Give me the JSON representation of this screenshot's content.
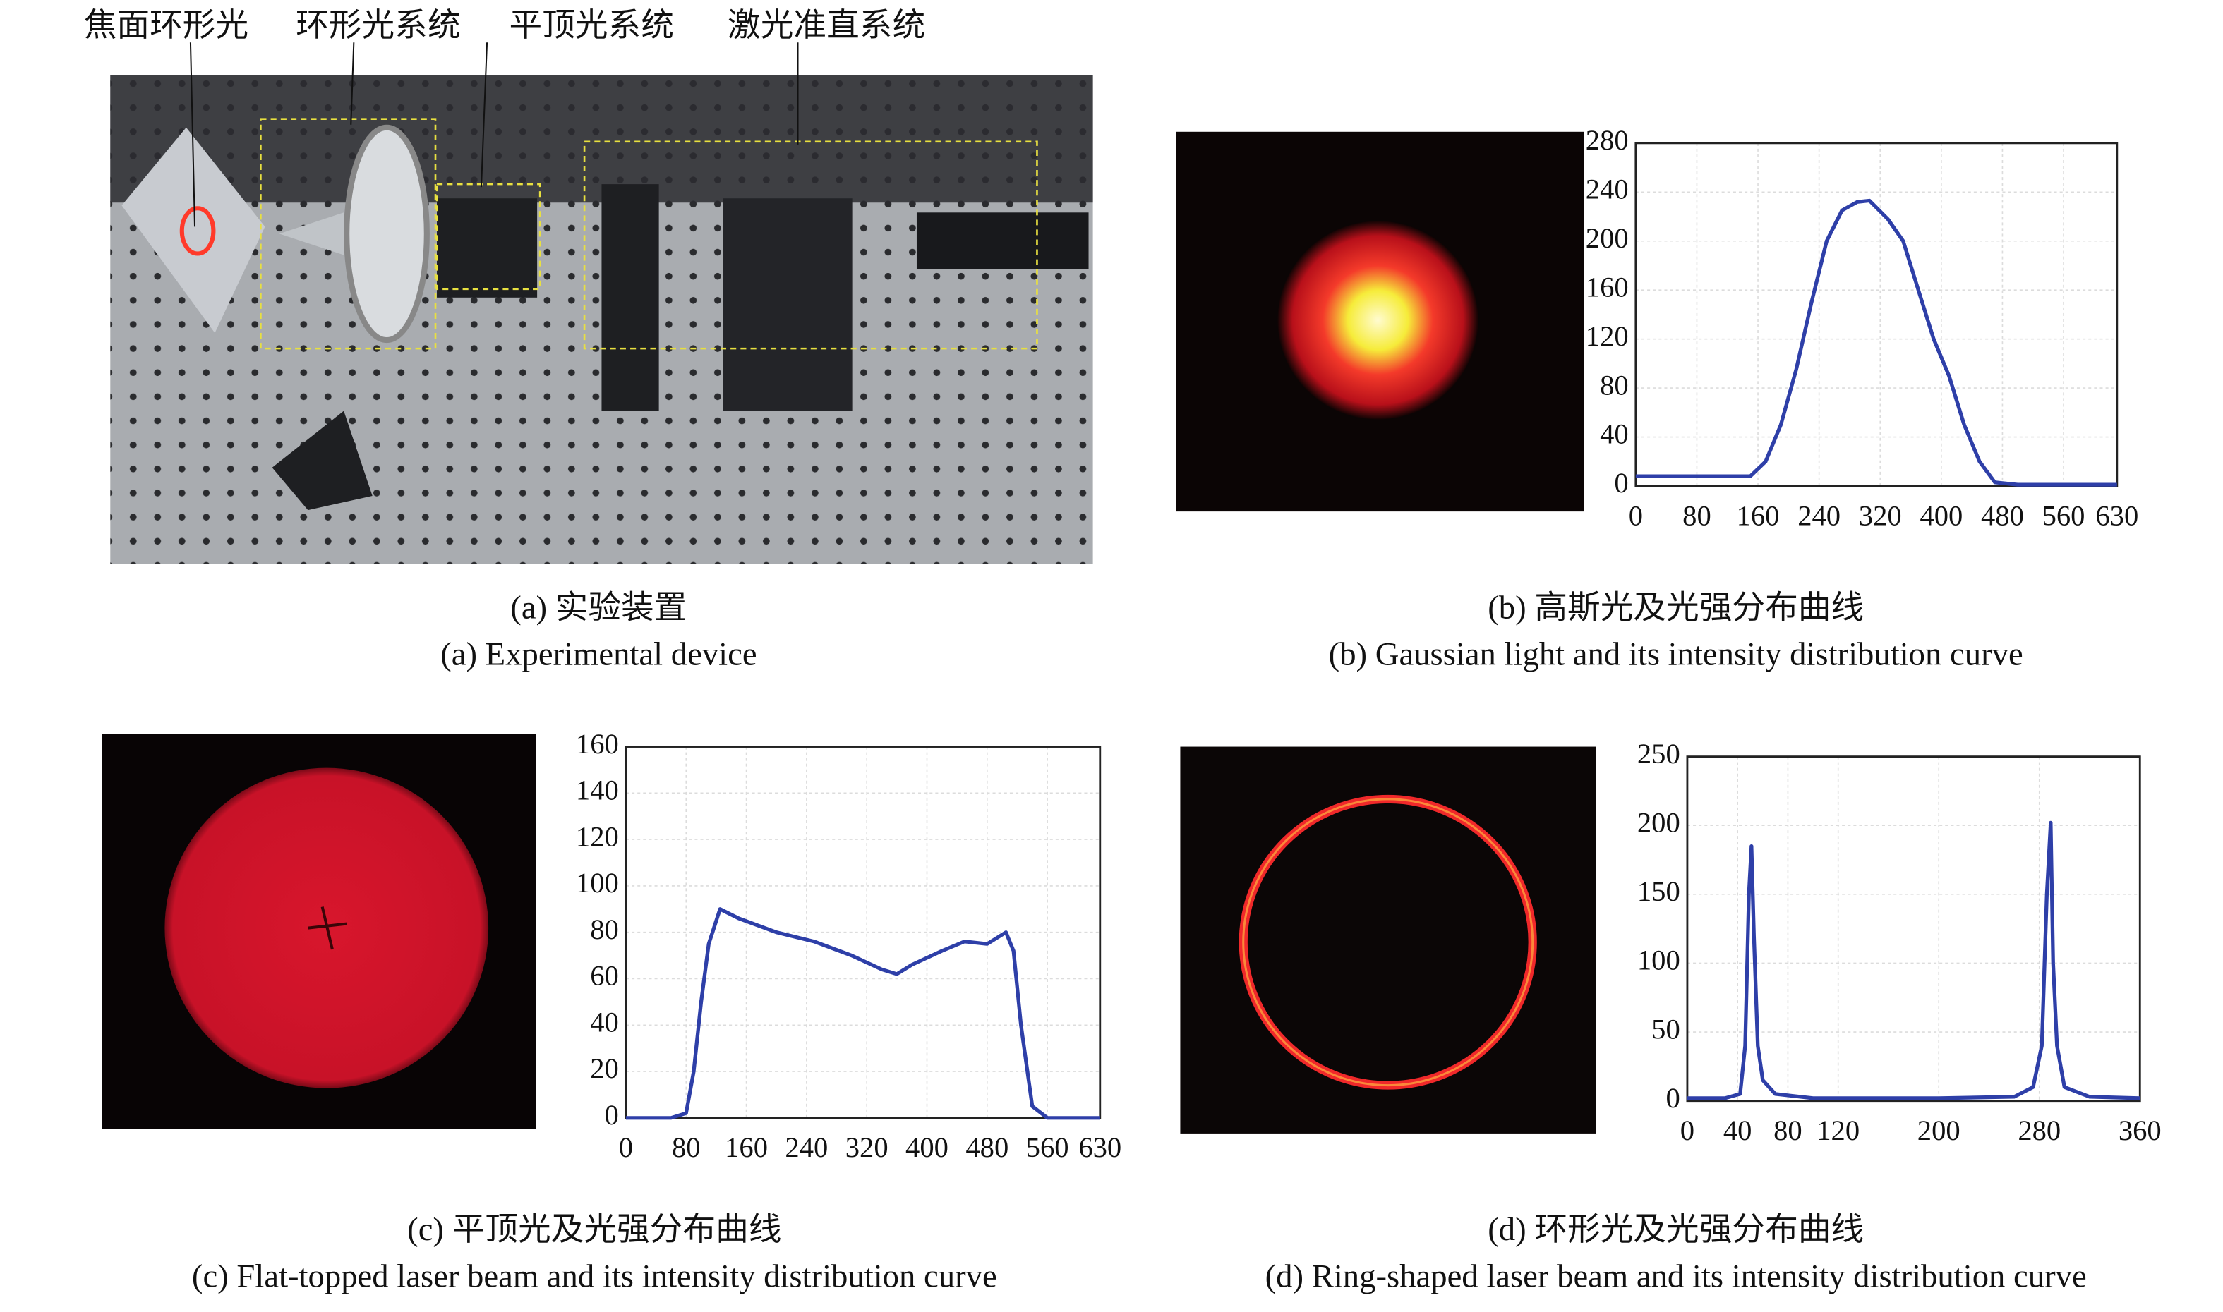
{
  "photo": {
    "labels": [
      "焦面环形光",
      "环形光系统",
      "平顶光系统",
      "激光准直系统"
    ],
    "caption": "(a) 实验装置",
    "caption_en": "(a) Experimental device"
  },
  "chart_data": [
    {
      "type": "line",
      "caption": "(b) 高斯光及光强分布曲线",
      "caption_en": "(b) Gaussian light and its intensity distribution curve",
      "x": [
        0,
        40,
        80,
        120,
        150,
        170,
        190,
        210,
        230,
        250,
        270,
        290,
        306,
        330,
        350,
        370,
        390,
        410,
        430,
        450,
        470,
        500,
        560,
        630
      ],
      "values": [
        8,
        8,
        8,
        8,
        8,
        20,
        50,
        95,
        150,
        200,
        225,
        232,
        233,
        218,
        200,
        160,
        120,
        90,
        50,
        20,
        3,
        1,
        1,
        1
      ],
      "color": "#2e3fa8",
      "xlim": [
        0,
        630
      ],
      "ylim": [
        0,
        280
      ],
      "xticks": [
        0,
        80,
        160,
        240,
        320,
        400,
        480,
        560,
        630
      ],
      "yticks": [
        0,
        40,
        80,
        120,
        160,
        200,
        240,
        280
      ],
      "grid": true
    },
    {
      "type": "line",
      "caption": "(c) 平顶光及光强分布曲线",
      "caption_en": "(c) Flat-topped laser beam and its intensity distribution curve",
      "x": [
        0,
        60,
        80,
        90,
        100,
        110,
        125,
        150,
        200,
        250,
        300,
        340,
        360,
        380,
        420,
        450,
        480,
        505,
        515,
        525,
        540,
        560,
        630
      ],
      "values": [
        0,
        0,
        2,
        20,
        50,
        75,
        90,
        86,
        80,
        76,
        70,
        64,
        62,
        66,
        72,
        76,
        75,
        80,
        72,
        40,
        5,
        0,
        0
      ],
      "color": "#2e3fa8",
      "xlim": [
        0,
        630
      ],
      "ylim": [
        0,
        160
      ],
      "xticks": [
        0,
        80,
        160,
        240,
        320,
        400,
        480,
        560,
        630
      ],
      "yticks": [
        0,
        20,
        40,
        60,
        80,
        100,
        120,
        140,
        160
      ],
      "grid": true
    },
    {
      "type": "line",
      "caption": "(d) 环形光及光强分布曲线",
      "caption_en": "(d) Ring-shaped laser beam and its intensity distribution curve",
      "x": [
        0,
        30,
        42,
        46,
        49,
        51,
        53,
        56,
        60,
        70,
        100,
        200,
        260,
        275,
        282,
        286,
        289,
        291,
        294,
        300,
        320,
        360
      ],
      "values": [
        2,
        2,
        5,
        40,
        150,
        185,
        120,
        40,
        15,
        5,
        2,
        2,
        3,
        10,
        40,
        150,
        202,
        100,
        40,
        10,
        3,
        2
      ],
      "color": "#2e3fa8",
      "xlim": [
        0,
        360
      ],
      "ylim": [
        0,
        250
      ],
      "xticks": [
        0,
        40,
        80,
        120,
        200,
        280,
        360
      ],
      "yticks": [
        0,
        50,
        100,
        150,
        200,
        250
      ],
      "grid": true
    }
  ]
}
